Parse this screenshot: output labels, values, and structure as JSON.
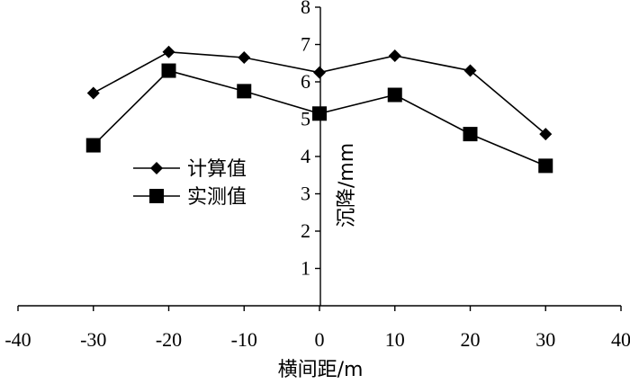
{
  "chart_data": {
    "type": "line",
    "title": "",
    "xlabel": "横间距/m",
    "ylabel": "沉降/mm",
    "xlim": [
      -40,
      40
    ],
    "ylim": [
      0,
      8
    ],
    "x_ticks": [
      -40,
      -30,
      -20,
      -10,
      0,
      10,
      20,
      30,
      40
    ],
    "y_ticks": [
      1,
      2,
      3,
      4,
      5,
      6,
      7,
      8
    ],
    "grid": false,
    "legend_position": "left",
    "x": [
      -30,
      -20,
      -10,
      0,
      10,
      20,
      30
    ],
    "series": [
      {
        "name": "计算值",
        "marker": "diamond",
        "color": "#000000",
        "values": [
          5.7,
          6.8,
          6.65,
          6.25,
          6.7,
          6.3,
          4.6
        ]
      },
      {
        "name": "实测值",
        "marker": "square",
        "color": "#000000",
        "values": [
          4.3,
          6.3,
          5.75,
          5.15,
          5.65,
          4.6,
          3.75
        ]
      }
    ]
  }
}
